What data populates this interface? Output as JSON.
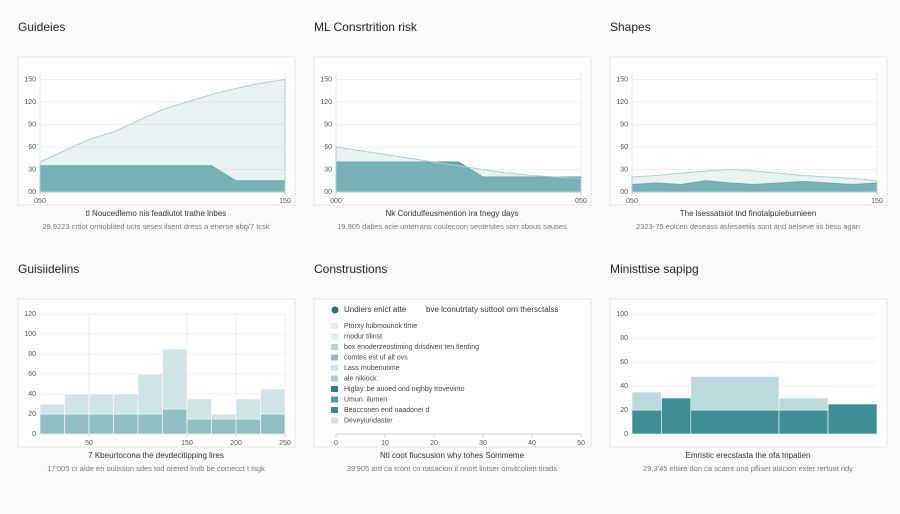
{
  "chart_data": [
    {
      "type": "area",
      "title": "Guideies",
      "captions": [
        "tl Noucedlemo nis feadiutot trathe lnbes",
        "29,9223 crtiot ornioblited ucts seses ilsent dress a enerse abg/7 tcsk"
      ],
      "x": [
        50,
        60,
        70,
        80,
        90,
        100,
        110,
        120,
        130,
        140,
        150
      ],
      "series": [
        {
          "color": "#4f9a9f",
          "values": [
            35,
            35,
            35,
            35,
            35,
            35,
            35,
            35,
            15,
            15,
            15
          ]
        },
        {
          "color": "#a9d0d4",
          "values": [
            40,
            55,
            70,
            80,
            95,
            110,
            120,
            130,
            138,
            145,
            150
          ]
        }
      ],
      "xlim": [
        50,
        150
      ],
      "xticks": [
        {
          "value": 50,
          "label": "050"
        },
        150
      ],
      "ylim": [
        0,
        160
      ],
      "yticks": [
        {
          "value": 0,
          "label": "00"
        },
        30,
        60,
        90,
        120,
        150
      ],
      "grid": true
    },
    {
      "type": "area",
      "title": "ML Consrtrition risk",
      "captions": [
        "Nk Coridulfeusmention ira tnegy days",
        "19,905 daltes acie unterrans coulecoon seotesites sorr sbous sauses"
      ],
      "x": [
        0,
        5,
        10,
        15,
        20,
        25,
        30,
        35,
        40,
        45,
        50
      ],
      "series": [
        {
          "color": "#4f9a9f",
          "values": [
            40,
            40,
            40,
            40,
            40,
            40,
            20,
            20,
            20,
            20,
            20
          ]
        },
        {
          "color": "#a9d0d4",
          "values": [
            60,
            55,
            50,
            45,
            40,
            35,
            30,
            25,
            22,
            20,
            18
          ]
        }
      ],
      "xlim": [
        0,
        50
      ],
      "xticks": [
        {
          "value": 0,
          "label": "000"
        },
        {
          "value": 50,
          "label": "050"
        }
      ],
      "ylim": [
        0,
        160
      ],
      "yticks": [
        {
          "value": 0,
          "label": "00"
        },
        30,
        60,
        90,
        120,
        150
      ],
      "grid": true
    },
    {
      "type": "area",
      "title": "Shapes",
      "captions": [
        "The lsessatsiot tnd finotalpuieburnieen",
        "2323-75 eolcen deseass asfesaetiis sont and aelseve iis bess agan"
      ],
      "x": [
        50,
        60,
        70,
        80,
        90,
        100,
        110,
        120,
        130,
        140,
        150
      ],
      "series": [
        {
          "color": "#4f9a9f",
          "values": [
            10,
            12,
            10,
            15,
            12,
            10,
            12,
            14,
            12,
            10,
            12
          ]
        },
        {
          "color": "#a9d0d4",
          "values": [
            20,
            22,
            25,
            28,
            30,
            28,
            25,
            22,
            20,
            18,
            15
          ]
        }
      ],
      "xlim": [
        50,
        150
      ],
      "xticks": [
        {
          "value": 50,
          "label": "050"
        },
        150
      ],
      "ylim": [
        0,
        160
      ],
      "yticks": [
        {
          "value": 0,
          "label": "00"
        },
        30,
        60,
        90,
        120,
        150
      ],
      "grid": true
    },
    {
      "type": "histogram",
      "title": "Guisiidelins",
      "captions": [
        "7 Kbeurtocona the devdecitipping lires",
        "17'005 cr alde en oulisson sdes tod orered lmtb be comecct t tsgk"
      ],
      "bins": [
        0,
        25,
        50,
        75,
        100,
        125,
        150,
        175,
        200,
        225,
        250
      ],
      "series": [
        {
          "color": "#8fbfc3",
          "values": [
            20,
            20,
            20,
            20,
            20,
            25,
            15,
            15,
            15,
            20
          ]
        },
        {
          "color": "#cfe4e6",
          "values": [
            10,
            20,
            20,
            20,
            40,
            60,
            20,
            5,
            20,
            25
          ]
        }
      ],
      "xlim": [
        0,
        250
      ],
      "xticks": [
        50,
        150,
        200,
        250
      ],
      "ylim": [
        0,
        120
      ],
      "yticks": [
        0,
        20,
        40,
        60,
        80,
        100,
        120
      ],
      "grid": true
    },
    {
      "type": "list",
      "title": "Construstions",
      "captions": [
        "Ntl coot fiucsusion why tohes Sommeme",
        "39'905 ard ca tcont cn nasacion il nnort lintser onsitcolien tirads"
      ],
      "header": [
        "Undiers enict atte",
        "bve lconutrtaty suttoot orn thersctalss"
      ],
      "items": [
        {
          "label": "Ptorxy fuibmounok tlme",
          "color": "#e3eef0"
        },
        {
          "label": "rnodur tilinst",
          "color": "#e3eef0"
        },
        {
          "label": "box enoderzeostiming drisdiven ten tlerding",
          "color": "#b9d7da"
        },
        {
          "label": "comtes est uf alt ovs",
          "color": "#8fbfc3"
        },
        {
          "label": "Lass rnubenutime",
          "color": "#cfe4e6"
        },
        {
          "label": "ale nikiock",
          "color": "#a9d0d4"
        },
        {
          "label": "Higlay..be auoed ond nighby trovevinto",
          "color": "#2f7f86"
        },
        {
          "label": "Umun. ilumen",
          "color": "#4f9a9f"
        },
        {
          "label": "Beacconen end oaadonei d",
          "color": "#3d8a90"
        },
        {
          "label": "Deveyiundaster",
          "color": "#cfe4e6"
        }
      ],
      "xlim": [
        0,
        50
      ],
      "xticks": [
        0,
        10,
        20,
        30,
        40,
        50
      ]
    },
    {
      "type": "histogram",
      "title": "Ministtise sapipg",
      "captions": [
        "Emristic erecstasta the ofa tnpatien",
        "29,3'45 eltiire don ca scamt ono pfliset alacion exter rertuot ndy"
      ],
      "bins": [
        0,
        30,
        60,
        150,
        200,
        250
      ],
      "series": [
        {
          "color": "#3d8f95",
          "values": [
            20,
            30,
            20,
            20,
            25
          ]
        },
        {
          "color": "#bcd9dc",
          "values": [
            15,
            0,
            28,
            10,
            0
          ]
        }
      ],
      "xlim": [
        0,
        250
      ],
      "ylim": [
        0,
        100
      ],
      "yticks": [
        0,
        20,
        40,
        60,
        80,
        100
      ],
      "grid": true
    }
  ]
}
